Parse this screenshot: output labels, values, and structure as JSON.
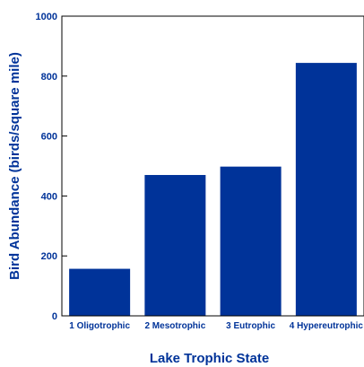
{
  "chart_data": {
    "type": "bar",
    "title": "",
    "xlabel": "Lake Trophic State",
    "ylabel": "Bird Abundance (birds/square mile)",
    "categories": [
      "1 Oligotrophic",
      "2 Mesotrophic",
      "3 Eutrophic",
      "4 Hypereutrophic"
    ],
    "values": [
      157,
      470,
      498,
      844
    ],
    "ylim": [
      0,
      1000
    ],
    "yticks": [
      0,
      200,
      400,
      600,
      800,
      1000
    ],
    "grid": false,
    "legend": "none",
    "colors": {
      "bar": "#003399",
      "axis": "#000000",
      "text": "#003399"
    }
  }
}
